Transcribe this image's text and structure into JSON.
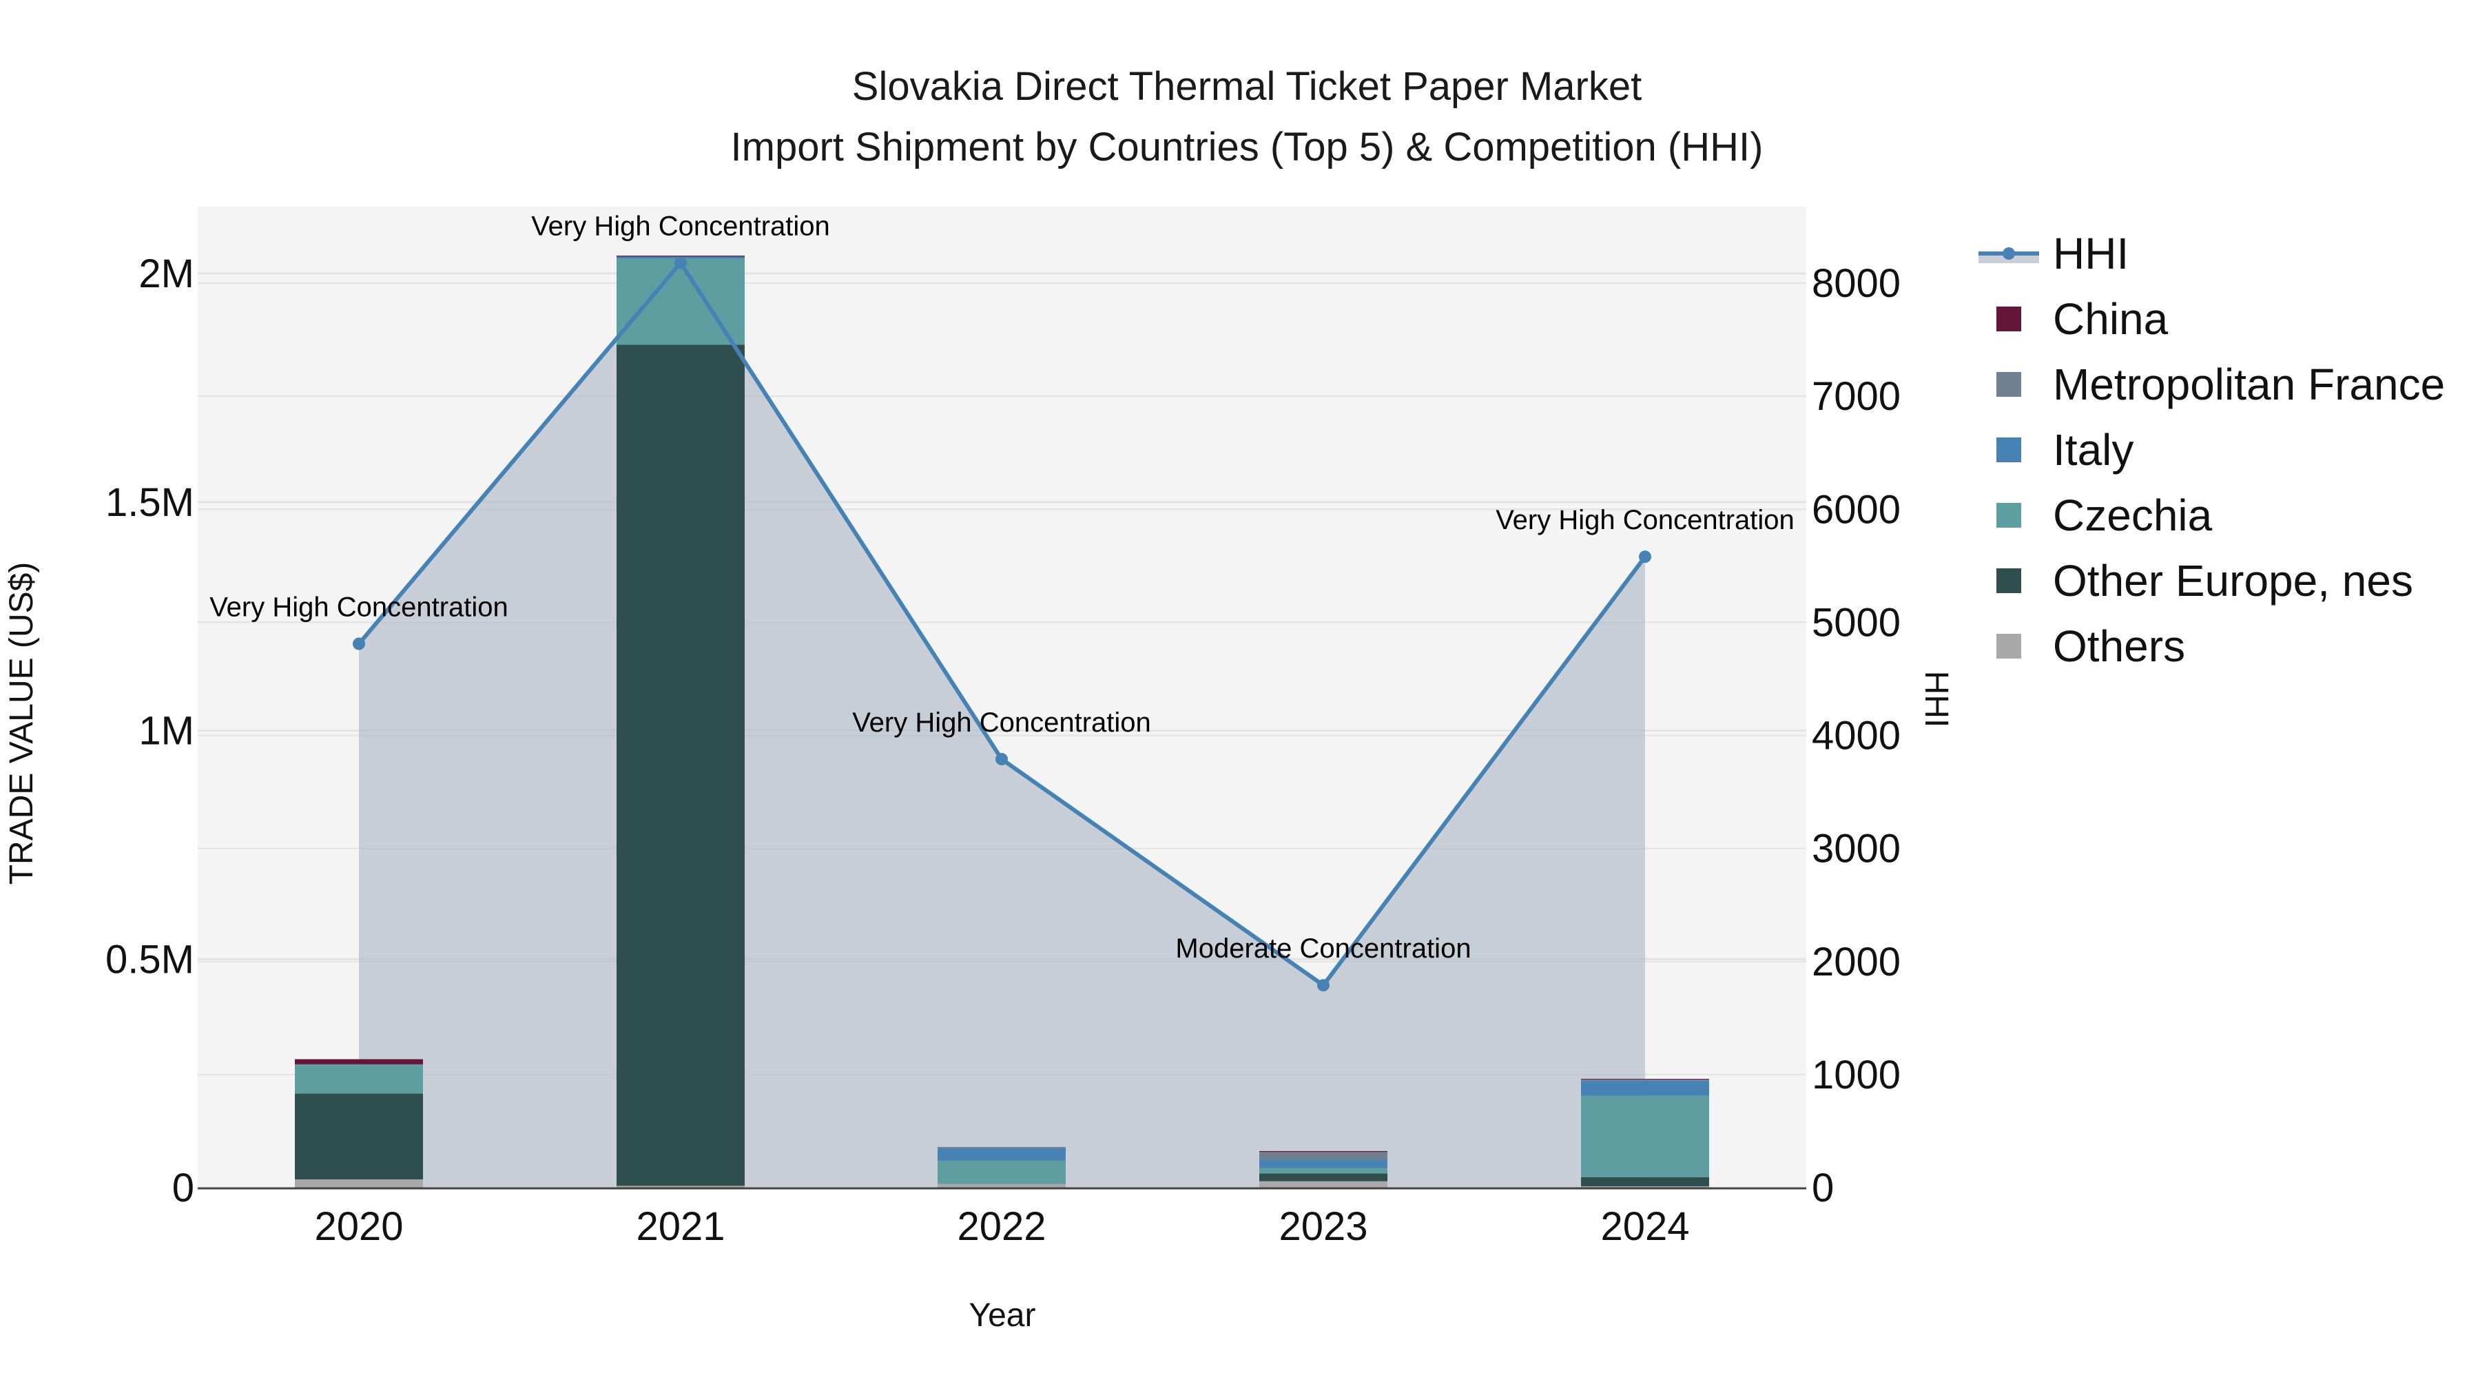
{
  "chart": {
    "title_line1": "Slovakia Direct Thermal Ticket Paper Market",
    "title_line2": "Import Shipment by Countries (Top 5) & Competition (HHI)",
    "xaxis_title": "Year",
    "yaxis_left_title": "TRADE VALUE (US$)",
    "yaxis_right_title": "HHI",
    "left_ticks": [
      {
        "value": 0,
        "label": "0"
      },
      {
        "value": 500000,
        "label": "0.5M"
      },
      {
        "value": 1000000,
        "label": "1M"
      },
      {
        "value": 1500000,
        "label": "1.5M"
      },
      {
        "value": 2000000,
        "label": "2M"
      }
    ],
    "right_ticks": [
      {
        "value": 0,
        "label": "0"
      },
      {
        "value": 1000,
        "label": "1000"
      },
      {
        "value": 2000,
        "label": "2000"
      },
      {
        "value": 3000,
        "label": "3000"
      },
      {
        "value": 4000,
        "label": "4000"
      },
      {
        "value": 5000,
        "label": "5000"
      },
      {
        "value": 6000,
        "label": "6000"
      },
      {
        "value": 7000,
        "label": "7000"
      },
      {
        "value": 8000,
        "label": "8000"
      }
    ],
    "colors": {
      "China": "#641638",
      "Metropolitan France": "#708090",
      "Italy": "#4682b4",
      "Czechia": "#5f9ea0",
      "Other Europe, nes": "#2f4f4f",
      "Others": "#a9a9a9",
      "HHI_line": "#4682b4",
      "HHI_fill": "rgba(176,186,200,0.65)",
      "plot_bg": "#f4f4f4",
      "grid": "#e2e2e2"
    }
  },
  "legend": {
    "items": [
      {
        "label": "HHI",
        "type": "line"
      },
      {
        "label": "China",
        "type": "box"
      },
      {
        "label": "Metropolitan France",
        "type": "box"
      },
      {
        "label": "Italy",
        "type": "box"
      },
      {
        "label": "Czechia",
        "type": "box"
      },
      {
        "label": "Other Europe, nes",
        "type": "box"
      },
      {
        "label": "Others",
        "type": "box"
      }
    ]
  },
  "chart_data": {
    "type": "bar",
    "subtype": "stacked bar + line (secondary axis)",
    "title": "Slovakia Direct Thermal Ticket Paper Market — Import Shipment by Countries (Top 5) & Competition (HHI)",
    "xlabel": "Year",
    "ylabel": "TRADE VALUE (US$)",
    "y2label": "HHI",
    "categories": [
      "2020",
      "2021",
      "2022",
      "2023",
      "2024"
    ],
    "ylim": [
      0,
      2150000
    ],
    "y2lim": [
      0,
      8700
    ],
    "grid": true,
    "legend_position": "right",
    "series": [
      {
        "name": "Others",
        "type": "bar",
        "values": [
          18000,
          4000,
          8000,
          14000,
          3000
        ]
      },
      {
        "name": "Other Europe, nes",
        "type": "bar",
        "values": [
          188000,
          1840000,
          0,
          17000,
          20000
        ]
      },
      {
        "name": "Czechia",
        "type": "bar",
        "values": [
          62000,
          188000,
          51000,
          12000,
          178000
        ]
      },
      {
        "name": "Italy",
        "type": "bar",
        "values": [
          0,
          5000,
          27000,
          18000,
          33000
        ]
      },
      {
        "name": "Metropolitan France",
        "type": "bar",
        "values": [
          2000,
          0,
          3000,
          17000,
          3000
        ]
      },
      {
        "name": "China",
        "type": "bar",
        "values": [
          11000,
          2000,
          0,
          2000,
          1000
        ]
      },
      {
        "name": "HHI",
        "type": "line",
        "axis": "y2",
        "values": [
          4810,
          8180,
          3790,
          1790,
          5580
        ]
      }
    ],
    "annotations": [
      {
        "x": "2020",
        "text": "Very High Concentration"
      },
      {
        "x": "2021",
        "text": "Very High Concentration"
      },
      {
        "x": "2022",
        "text": "Very High Concentration"
      },
      {
        "x": "2023",
        "text": "Moderate Concentration"
      },
      {
        "x": "2024",
        "text": "Very High Concentration"
      }
    ]
  }
}
